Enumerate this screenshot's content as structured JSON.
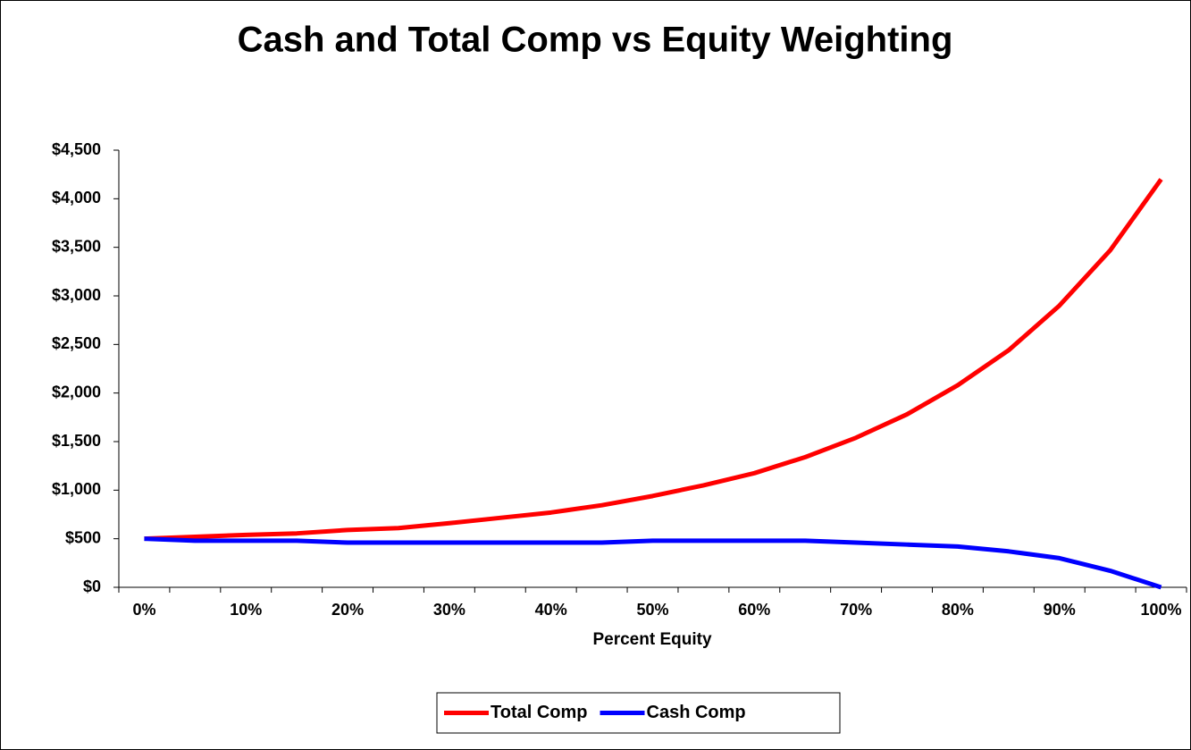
{
  "chart_data": {
    "type": "line",
    "title": "Cash and Total Comp vs Equity Weighting",
    "x_label": "Percent Equity",
    "categories": [
      "0%",
      null,
      "10%",
      null,
      "20%",
      null,
      "30%",
      null,
      "40%",
      null,
      "50%",
      null,
      "60%",
      null,
      "70%",
      null,
      "80%",
      null,
      "90%",
      null,
      "100%"
    ],
    "series": [
      {
        "name": "Total Comp",
        "color": "#ff0000",
        "values": [
          500,
          520,
          540,
          555,
          590,
          610,
          660,
          715,
          770,
          845,
          940,
          1050,
          1175,
          1340,
          1540,
          1780,
          2080,
          2440,
          2900,
          3470,
          4200
        ]
      },
      {
        "name": "Cash Comp",
        "color": "#0000ff",
        "values": [
          500,
          480,
          480,
          480,
          460,
          460,
          460,
          460,
          460,
          460,
          480,
          480,
          480,
          480,
          460,
          440,
          420,
          370,
          300,
          170,
          0
        ]
      }
    ],
    "ylim": [
      0,
      4500
    ],
    "yticks": [
      {
        "value": 0,
        "label": "$0"
      },
      {
        "value": 500,
        "label": "$500"
      },
      {
        "value": 1000,
        "label": "$1,000"
      },
      {
        "value": 1500,
        "label": "$1,500"
      },
      {
        "value": 2000,
        "label": "$2,000"
      },
      {
        "value": 2500,
        "label": "$2,500"
      },
      {
        "value": 3000,
        "label": "$3,000"
      },
      {
        "value": 3500,
        "label": "$3,500"
      },
      {
        "value": 4000,
        "label": "$4,000"
      },
      {
        "value": 4500,
        "label": "$4,500"
      }
    ],
    "grid": false,
    "legend": "bottom"
  }
}
